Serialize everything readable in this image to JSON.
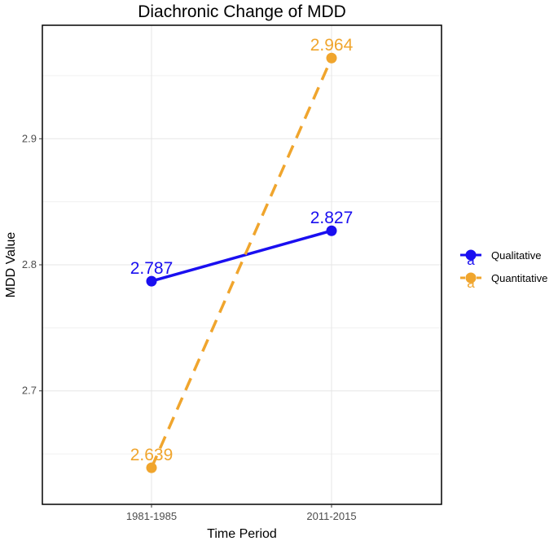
{
  "chart_data": {
    "type": "line",
    "title": "Diachronic Change of MDD",
    "xlabel": "Time Period",
    "ylabel": "MDD Value",
    "categories": [
      "1981-1985",
      "2011-2015"
    ],
    "ylim": [
      2.61,
      2.99
    ],
    "yticks": [
      2.7,
      2.8,
      2.9
    ],
    "ytick_labels": [
      "2.7",
      "2.8",
      "2.9"
    ],
    "grid": true,
    "legend_position": "right",
    "series": [
      {
        "name": "Qualitative",
        "values": [
          2.787,
          2.827
        ],
        "labels": [
          "2.787",
          "2.827"
        ],
        "color": "#1a0ff0",
        "line_style": "solid"
      },
      {
        "name": "Quantitative",
        "values": [
          2.639,
          2.964
        ],
        "labels": [
          "2.639",
          "2.964"
        ],
        "color": "#f0a52d",
        "line_style": "dashed"
      }
    ],
    "legend_key_glyph": "a"
  }
}
